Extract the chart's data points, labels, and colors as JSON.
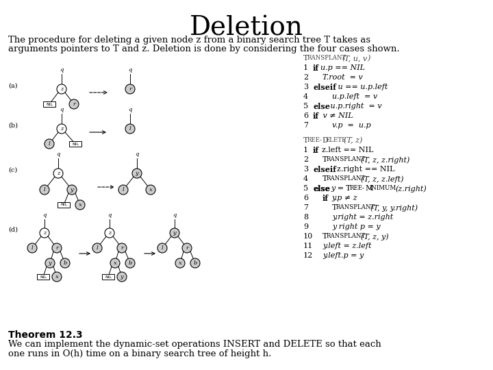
{
  "title": "Deletion",
  "bg_color": "#ffffff",
  "intro_line1": "The procedure for deleting a given node z from a binary search tree T takes as",
  "intro_line2": "arguments pointers to T and z. Deletion is done by considering the four cases shown.",
  "theorem_bold": "Theorem 12.3",
  "theorem_line1": "We can implement the dynamic-set operations INSERT and DELETE so that each",
  "theorem_line2": "one runs in O(h) time on a binary search tree of height h."
}
